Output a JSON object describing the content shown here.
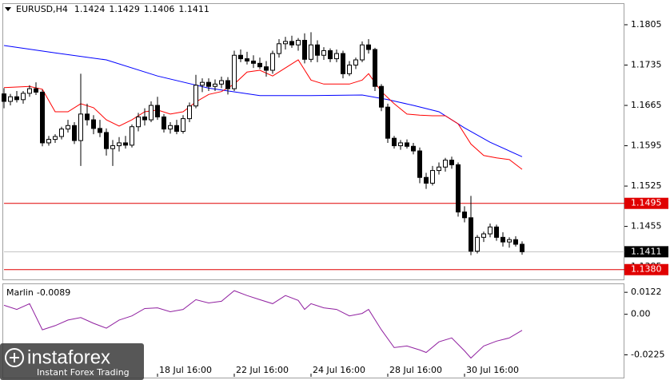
{
  "chart_data": {
    "type": "candlestick",
    "symbol": "EURUSD,H4",
    "open": [
      1.1685,
      1.1672,
      1.168,
      1.1675,
      1.1686,
      1.1694,
      1.1688,
      1.16,
      1.1606,
      1.1611,
      1.1624,
      1.163,
      1.1604,
      1.165,
      1.164,
      1.1625,
      1.1618,
      1.159,
      1.1595,
      1.16,
      1.1596,
      1.1628,
      1.1645,
      1.164,
      1.1665,
      1.1645,
      1.1624,
      1.163,
      1.162,
      1.1642,
      1.1664,
      1.17,
      1.1705,
      1.1698,
      1.1702,
      1.1708,
      1.1694,
      1.1752,
      1.1746,
      1.1742,
      1.1738,
      1.1732,
      1.1726,
      1.1755,
      1.1772,
      1.1776,
      1.177,
      1.1778,
      1.1745,
      1.177,
      1.1752,
      1.176,
      1.1746,
      1.1755,
      1.172,
      1.1735,
      1.1744,
      1.177,
      1.1762,
      1.1698,
      1.1662,
      1.1608,
      1.1595,
      1.16,
      1.1594,
      1.1586,
      1.154,
      1.153,
      1.1552,
      1.1558,
      1.157,
      1.1562,
      1.148,
      1.147,
      1.1412,
      1.1436,
      1.1442,
      1.1454,
      1.1436,
      1.1428,
      1.1432,
      1.1424
    ],
    "high": [
      1.1695,
      1.1685,
      1.169,
      1.169,
      1.17,
      1.1705,
      1.1692,
      1.1612,
      1.1615,
      1.1628,
      1.164,
      1.1636,
      1.172,
      1.1668,
      1.1648,
      1.164,
      1.1625,
      1.1605,
      1.161,
      1.1612,
      1.1632,
      1.1652,
      1.166,
      1.1672,
      1.168,
      1.165,
      1.1636,
      1.164,
      1.1648,
      1.167,
      1.1718,
      1.1712,
      1.1712,
      1.171,
      1.1715,
      1.1714,
      1.176,
      1.1762,
      1.1758,
      1.1752,
      1.1748,
      1.1742,
      1.176,
      1.178,
      1.1784,
      1.1786,
      1.1782,
      1.179,
      1.1792,
      1.1778,
      1.1766,
      1.1764,
      1.1762,
      1.176,
      1.1742,
      1.1748,
      1.1776,
      1.178,
      1.1765,
      1.1702,
      1.1668,
      1.1612,
      1.1605,
      1.1606,
      1.16,
      1.1592,
      1.1548,
      1.156,
      1.1566,
      1.1574,
      1.1576,
      1.1566,
      1.149,
      1.1508,
      1.144,
      1.1446,
      1.146,
      1.1458,
      1.1445,
      1.1436,
      1.1438,
      1.1429
    ],
    "low": [
      1.166,
      1.1665,
      1.167,
      1.1668,
      1.168,
      1.1683,
      1.1594,
      1.1595,
      1.16,
      1.1606,
      1.1618,
      1.1598,
      1.156,
      1.163,
      1.1615,
      1.161,
      1.1578,
      1.156,
      1.1585,
      1.159,
      1.1592,
      1.162,
      1.163,
      1.1636,
      1.164,
      1.1618,
      1.1616,
      1.1615,
      1.1616,
      1.1636,
      1.166,
      1.1688,
      1.169,
      1.169,
      1.1695,
      1.1684,
      1.169,
      1.174,
      1.1736,
      1.173,
      1.1728,
      1.1715,
      1.172,
      1.1748,
      1.1762,
      1.1765,
      1.176,
      1.1738,
      1.174,
      1.174,
      1.1744,
      1.174,
      1.174,
      1.1712,
      1.1716,
      1.1728,
      1.174,
      1.1755,
      1.169,
      1.1655,
      1.16,
      1.159,
      1.1588,
      1.159,
      1.158,
      1.153,
      1.152,
      1.1526,
      1.1545,
      1.155,
      1.1555,
      1.1472,
      1.1462,
      1.1405,
      1.1408,
      1.1428,
      1.1436,
      1.143,
      1.142,
      1.1418,
      1.142,
      1.1406
    ],
    "close": [
      1.1672,
      1.168,
      1.1675,
      1.1686,
      1.1694,
      1.1688,
      1.16,
      1.1606,
      1.1611,
      1.1624,
      1.163,
      1.1604,
      1.165,
      1.164,
      1.1625,
      1.1618,
      1.159,
      1.1595,
      1.16,
      1.1596,
      1.1628,
      1.1645,
      1.164,
      1.1665,
      1.1645,
      1.1624,
      1.163,
      1.162,
      1.1642,
      1.1664,
      1.17,
      1.1705,
      1.1698,
      1.1702,
      1.1708,
      1.1694,
      1.1752,
      1.1746,
      1.1742,
      1.1738,
      1.1732,
      1.1726,
      1.1755,
      1.1772,
      1.1776,
      1.177,
      1.1778,
      1.1745,
      1.177,
      1.1752,
      1.176,
      1.1746,
      1.1755,
      1.172,
      1.1735,
      1.1744,
      1.177,
      1.1762,
      1.1698,
      1.1662,
      1.1608,
      1.1595,
      1.16,
      1.1594,
      1.1586,
      1.154,
      1.153,
      1.1552,
      1.1558,
      1.157,
      1.1562,
      1.148,
      1.147,
      1.1412,
      1.1436,
      1.1442,
      1.1454,
      1.1436,
      1.1428,
      1.1432,
      1.1424,
      1.1411
    ],
    "bull_color": "#ffffff",
    "bear_color": "#000000",
    "xlim": [
      0,
      97
    ],
    "xticks": [
      {
        "value": 24,
        "label": "18 Jul 16:00"
      },
      {
        "value": 36,
        "label": "22 Jul 16:00"
      },
      {
        "value": 48,
        "label": "24 Jul 16:00"
      },
      {
        "value": 60,
        "label": "28 Jul 16:00"
      },
      {
        "value": 72,
        "label": "30 Jul 16:00"
      }
    ],
    "ylim": [
      1.1363,
      1.1841
    ],
    "yticks": [
      1.1805,
      1.1735,
      1.1665,
      1.1595,
      1.1525,
      1.1455,
      1.1385
    ],
    "lines": [
      {
        "color": "#0000ff",
        "x": [
          0,
          8,
          16,
          24,
          32,
          40,
          48,
          56,
          60,
          64,
          68,
          72,
          76,
          81
        ],
        "values": [
          1.1769,
          1.1756,
          1.1744,
          1.1716,
          1.1695,
          1.1682,
          1.1682,
          1.1683,
          1.1675,
          1.1665,
          1.1654,
          1.1626,
          1.1601,
          1.1576
        ]
      },
      {
        "color": "#ff0000",
        "x": [
          0,
          4,
          6,
          8,
          10,
          12,
          14,
          16,
          18,
          20,
          22,
          24,
          26,
          28,
          30,
          32,
          34,
          36,
          38,
          40,
          42,
          44,
          46,
          48,
          50,
          52,
          54,
          56,
          57,
          59,
          61,
          63,
          65,
          67,
          69,
          71,
          73,
          75,
          77,
          79,
          81
        ],
        "values": [
          1.1696,
          1.1698,
          1.1693,
          1.1654,
          1.1654,
          1.1668,
          1.1661,
          1.164,
          1.1629,
          1.164,
          1.1654,
          1.1657,
          1.165,
          1.1654,
          1.1671,
          1.1684,
          1.1689,
          1.1702,
          1.1723,
          1.1726,
          1.1716,
          1.173,
          1.1744,
          1.1709,
          1.1702,
          1.1702,
          1.1702,
          1.1709,
          1.172,
          1.1689,
          1.1668,
          1.165,
          1.1648,
          1.1647,
          1.1647,
          1.1633,
          1.1598,
          1.1578,
          1.1574,
          1.1571,
          1.1554
        ]
      }
    ],
    "levels": [
      {
        "value": 1.1495,
        "label": "1.1495"
      },
      {
        "value": 1.138,
        "label": "1.1380"
      }
    ],
    "level_color": "#e00000",
    "price_line_color": "#c0c0c0",
    "indicator": {
      "name": "Marlin",
      "value": -0.0089,
      "color": "#9020a0",
      "x": [
        0,
        2,
        4,
        6,
        8,
        10,
        12,
        14,
        16,
        18,
        20,
        22,
        24,
        26,
        28,
        30,
        32,
        34,
        36,
        38,
        40,
        42,
        44,
        46,
        47,
        48,
        50,
        52,
        54,
        56,
        57,
        59,
        61,
        63,
        65,
        66,
        68,
        70,
        72,
        73,
        75,
        77,
        79,
        81
      ],
      "values": [
        0.005,
        0.0027,
        0.0059,
        -0.0086,
        -0.0063,
        -0.0032,
        -0.0018,
        -0.005,
        -0.0077,
        -0.0032,
        -0.0009,
        0.0032,
        0.0036,
        0.0014,
        0.0027,
        0.0081,
        0.0063,
        0.0072,
        0.0131,
        0.0104,
        0.0081,
        0.0059,
        0.0104,
        0.0077,
        0.0027,
        0.0059,
        0.0036,
        0.0027,
        -0.0009,
        0.0005,
        0.0027,
        -0.0086,
        -0.0185,
        -0.0176,
        -0.0198,
        -0.0212,
        -0.0153,
        -0.0131,
        -0.0203,
        -0.0243,
        -0.0176,
        -0.0149,
        -0.0131,
        -0.0089
      ],
      "ylim": [
        -0.0347,
        0.0167
      ],
      "yticks": [
        0.0122,
        {
          "value": 0,
          "label": "0.00"
        },
        -0.0225
      ]
    }
  },
  "logo": {
    "brand": "instaforex",
    "tagline": "Instant Forex Trading"
  }
}
